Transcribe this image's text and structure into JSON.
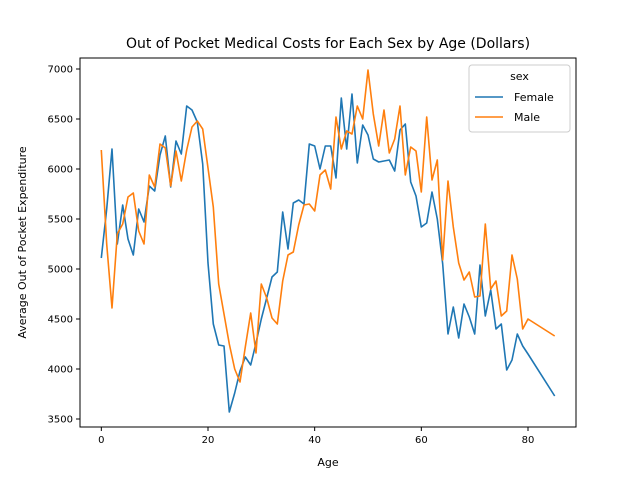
{
  "chart_data": {
    "type": "line",
    "title": "Out of Pocket Medical Costs for Each Sex by Age (Dollars)",
    "xlabel": "Age",
    "ylabel": "Average Out of Pocket Expenditure",
    "xlim": [
      -4,
      89
    ],
    "ylim": [
      3420,
      7110
    ],
    "xticks": [
      0,
      20,
      40,
      60,
      80
    ],
    "yticks": [
      3500,
      4000,
      4500,
      5000,
      5500,
      6000,
      6500,
      7000
    ],
    "legend": {
      "title": "sex",
      "placement": "top-right"
    },
    "grid": false,
    "series": [
      {
        "name": "Female",
        "color": "#1f77b4",
        "x": [
          0,
          1,
          2,
          3,
          4,
          5,
          6,
          7,
          8,
          9,
          10,
          11,
          12,
          13,
          14,
          15,
          16,
          17,
          18,
          19,
          20,
          21,
          22,
          23,
          24,
          25,
          26,
          27,
          28,
          29,
          30,
          31,
          32,
          33,
          34,
          35,
          36,
          37,
          38,
          39,
          40,
          41,
          42,
          43,
          44,
          45,
          46,
          47,
          48,
          49,
          50,
          51,
          52,
          53,
          54,
          55,
          56,
          57,
          58,
          59,
          60,
          61,
          62,
          63,
          64,
          65,
          66,
          67,
          68,
          69,
          70,
          71,
          72,
          73,
          74,
          75,
          76,
          77,
          78,
          79,
          80,
          85
        ],
        "values": [
          5110,
          5600,
          6200,
          5250,
          5640,
          5300,
          5140,
          5600,
          5470,
          5830,
          5780,
          6140,
          6330,
          5820,
          6280,
          6150,
          6630,
          6590,
          6470,
          6050,
          5060,
          4450,
          4240,
          4230,
          3570,
          3760,
          3980,
          4120,
          4040,
          4260,
          4500,
          4710,
          4920,
          4970,
          5570,
          5200,
          5660,
          5690,
          5650,
          6250,
          6230,
          6000,
          6230,
          6230,
          5910,
          6710,
          6200,
          6750,
          6060,
          6440,
          6340,
          6100,
          6070,
          6080,
          6090,
          5980,
          6390,
          6450,
          5870,
          5730,
          5420,
          5460,
          5770,
          5500,
          5050,
          4350,
          4620,
          4310,
          4650,
          4520,
          4350,
          5040,
          4530,
          4790,
          4400,
          4450,
          3990,
          4090,
          4350,
          4230,
          4150,
          3730
        ]
      },
      {
        "name": "Male",
        "color": "#ff7f0e",
        "x": [
          0,
          1,
          2,
          3,
          4,
          5,
          6,
          7,
          8,
          9,
          10,
          11,
          12,
          13,
          14,
          15,
          16,
          17,
          18,
          19,
          20,
          21,
          22,
          23,
          24,
          25,
          26,
          27,
          28,
          29,
          30,
          31,
          32,
          33,
          34,
          35,
          36,
          37,
          38,
          39,
          40,
          41,
          42,
          43,
          44,
          45,
          46,
          47,
          48,
          49,
          50,
          51,
          52,
          53,
          54,
          55,
          56,
          57,
          58,
          59,
          60,
          61,
          62,
          63,
          64,
          65,
          66,
          67,
          68,
          69,
          70,
          71,
          72,
          73,
          74,
          75,
          76,
          77,
          78,
          79,
          80,
          85
        ],
        "values": [
          6190,
          5250,
          4610,
          5350,
          5450,
          5720,
          5760,
          5380,
          5250,
          5940,
          5820,
          6250,
          6210,
          5830,
          6180,
          5880,
          6190,
          6420,
          6480,
          6400,
          6010,
          5620,
          4850,
          4550,
          4250,
          4000,
          3870,
          4220,
          4560,
          4160,
          4850,
          4710,
          4510,
          4450,
          4880,
          5140,
          5170,
          5440,
          5640,
          5650,
          5580,
          5940,
          5990,
          5800,
          6520,
          6200,
          6380,
          6350,
          6630,
          6500,
          6990,
          6550,
          6230,
          6590,
          6160,
          6300,
          6630,
          5940,
          6220,
          6180,
          5770,
          6520,
          5890,
          6090,
          5090,
          5880,
          5420,
          5060,
          4890,
          4970,
          4720,
          4730,
          5450,
          4800,
          4880,
          4530,
          4580,
          5140,
          4900,
          4400,
          4500,
          4330
        ]
      }
    ]
  }
}
